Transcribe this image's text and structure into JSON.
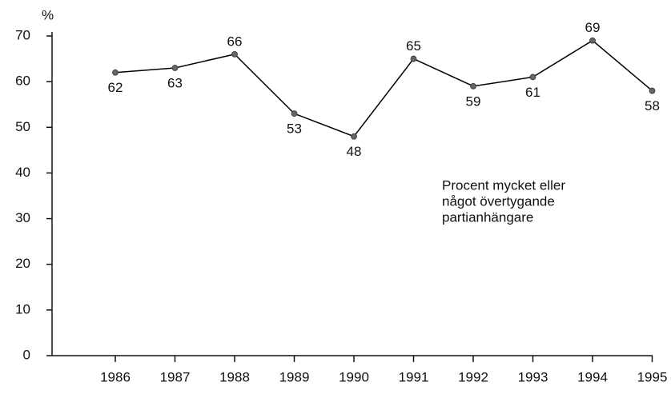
{
  "chart_data": {
    "type": "line",
    "ylabel": "%",
    "categories": [
      "1986",
      "1987",
      "1988",
      "1989",
      "1990",
      "1991",
      "1992",
      "1993",
      "1994",
      "1995"
    ],
    "values": [
      62,
      63,
      66,
      53,
      48,
      65,
      59,
      61,
      69,
      58
    ],
    "color": "#000000",
    "marker_color": "#666666",
    "ylim": [
      0,
      70
    ],
    "yticks": [
      0,
      10,
      20,
      30,
      40,
      50,
      60,
      70
    ],
    "grid": false,
    "annotation": [
      "Procent mycket eller",
      "något övertygande",
      "partianhängare"
    ]
  }
}
